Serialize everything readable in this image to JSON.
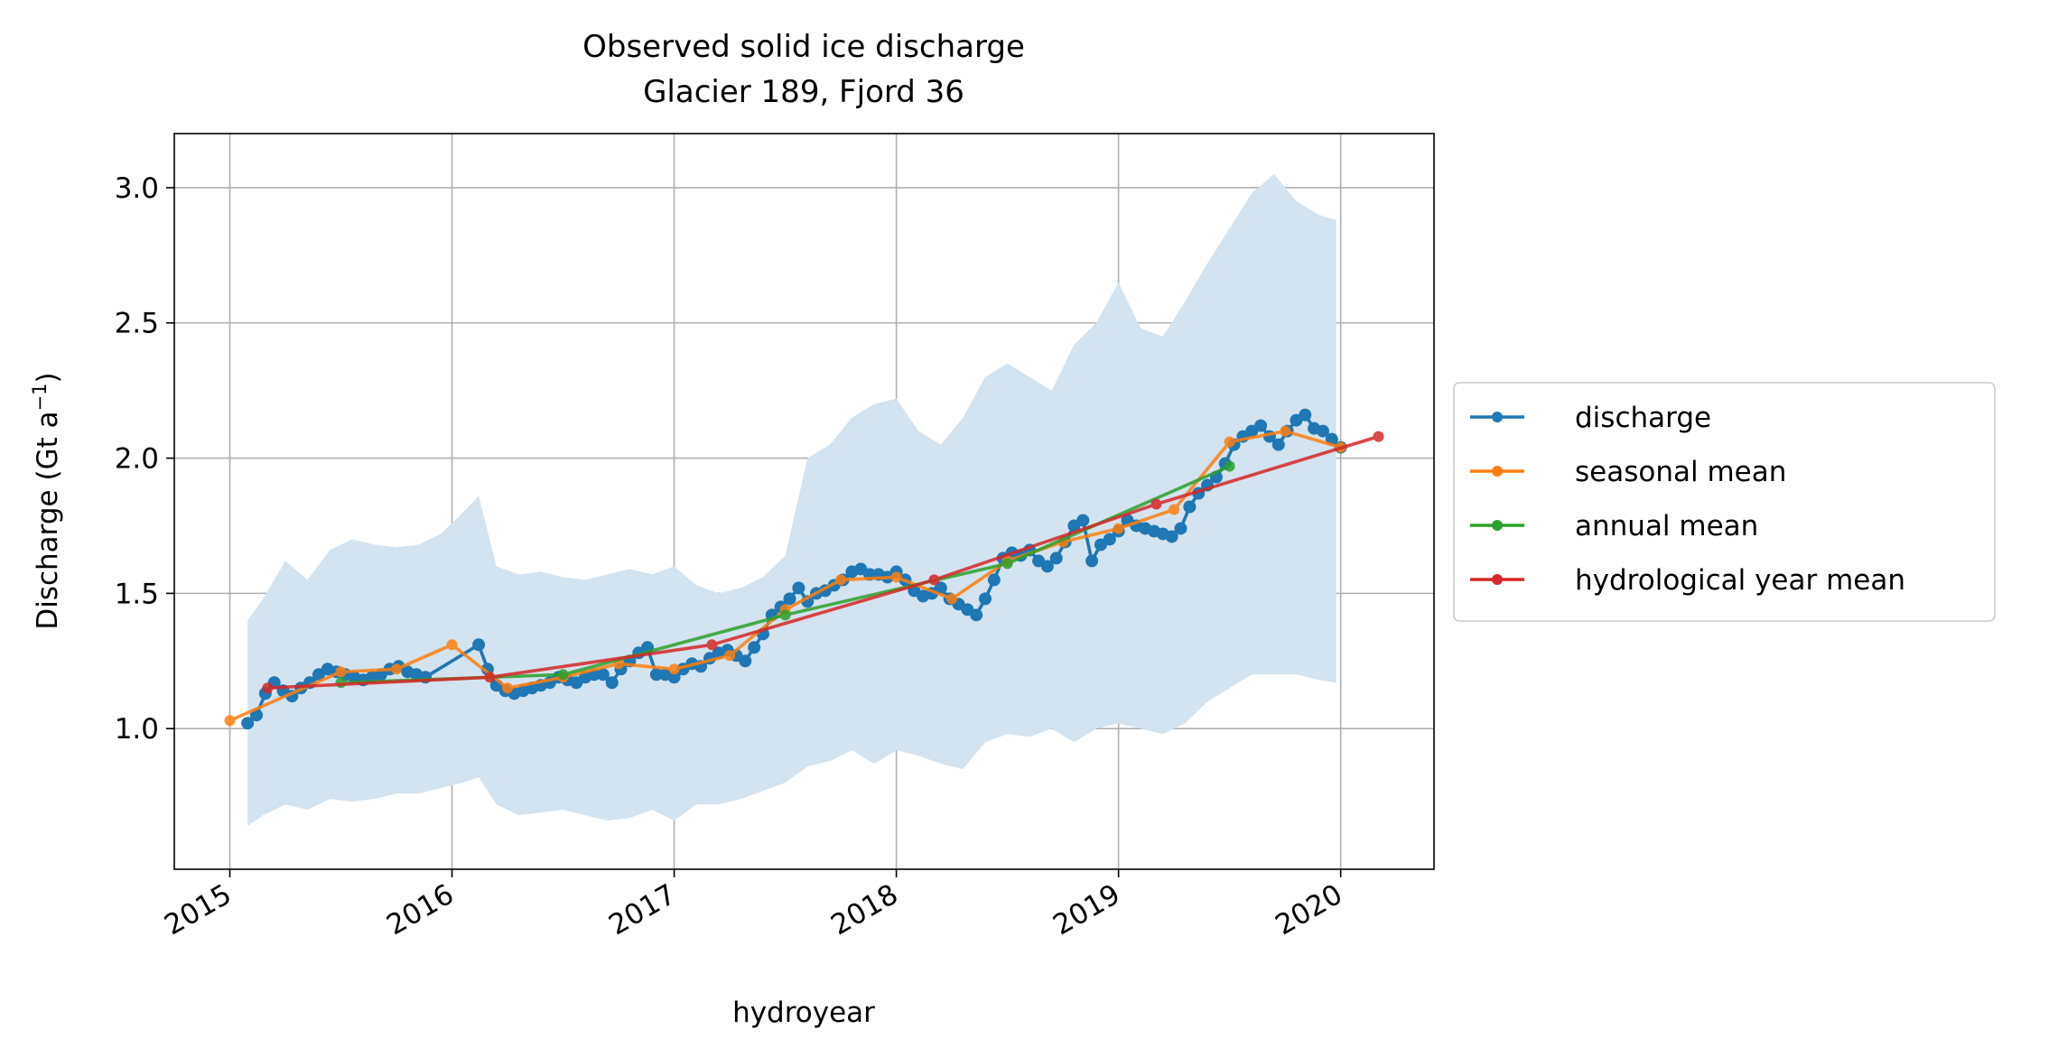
{
  "chart_data": {
    "type": "line",
    "title_line1": "Observed solid ice discharge",
    "title_line2": "Glacier 189, Fjord 36",
    "xlabel": "hydroyear",
    "ylabel": "Discharge (Gt a",
    "ylabel_sup": "−1",
    "ylabel_end": ")",
    "xlim": [
      2014.75,
      2020.42
    ],
    "ylim": [
      0.48,
      3.2
    ],
    "x_ticks": [
      {
        "value": 2015,
        "label": "2015"
      },
      {
        "value": 2016,
        "label": "2016"
      },
      {
        "value": 2017,
        "label": "2017"
      },
      {
        "value": 2018,
        "label": "2018"
      },
      {
        "value": 2019,
        "label": "2019"
      },
      {
        "value": 2020,
        "label": "2020"
      }
    ],
    "y_ticks": [
      {
        "value": 1.0,
        "label": "1.0"
      },
      {
        "value": 1.5,
        "label": "1.5"
      },
      {
        "value": 2.0,
        "label": "2.0"
      },
      {
        "value": 2.5,
        "label": "2.5"
      },
      {
        "value": 3.0,
        "label": "3.0"
      }
    ],
    "grid": true,
    "legend_position": "right-outside",
    "uncertainty_band": {
      "color": "#d3e3ef",
      "x": [
        2015.08,
        2015.15,
        2015.25,
        2015.35,
        2015.45,
        2015.55,
        2015.65,
        2015.75,
        2015.85,
        2015.95,
        2016.05,
        2016.12,
        2016.2,
        2016.3,
        2016.4,
        2016.5,
        2016.6,
        2016.7,
        2016.8,
        2016.9,
        2017.0,
        2017.1,
        2017.2,
        2017.3,
        2017.4,
        2017.5,
        2017.6,
        2017.7,
        2017.8,
        2017.9,
        2018.0,
        2018.1,
        2018.2,
        2018.3,
        2018.4,
        2018.5,
        2018.6,
        2018.7,
        2018.8,
        2018.9,
        2019.0,
        2019.1,
        2019.2,
        2019.3,
        2019.4,
        2019.5,
        2019.6,
        2019.7,
        2019.8,
        2019.9,
        2019.98
      ],
      "upper": [
        1.4,
        1.48,
        1.62,
        1.55,
        1.66,
        1.7,
        1.68,
        1.67,
        1.68,
        1.72,
        1.8,
        1.86,
        1.6,
        1.57,
        1.58,
        1.56,
        1.55,
        1.57,
        1.59,
        1.57,
        1.6,
        1.53,
        1.5,
        1.52,
        1.56,
        1.64,
        2.0,
        2.05,
        2.15,
        2.2,
        2.22,
        2.1,
        2.05,
        2.15,
        2.3,
        2.35,
        2.3,
        2.25,
        2.42,
        2.5,
        2.65,
        2.48,
        2.45,
        2.58,
        2.72,
        2.85,
        2.98,
        3.05,
        2.95,
        2.9,
        2.88
      ],
      "lower": [
        0.64,
        0.68,
        0.72,
        0.7,
        0.74,
        0.73,
        0.74,
        0.76,
        0.76,
        0.78,
        0.8,
        0.82,
        0.72,
        0.68,
        0.69,
        0.7,
        0.68,
        0.66,
        0.67,
        0.7,
        0.66,
        0.72,
        0.72,
        0.74,
        0.77,
        0.8,
        0.86,
        0.88,
        0.92,
        0.87,
        0.92,
        0.9,
        0.87,
        0.85,
        0.95,
        0.98,
        0.97,
        1.0,
        0.95,
        1.0,
        1.02,
        1.0,
        0.98,
        1.02,
        1.1,
        1.15,
        1.2,
        1.2,
        1.2,
        1.18,
        1.17
      ]
    },
    "series": [
      {
        "name": "discharge",
        "color": "#1f77b4",
        "marker_size": 7,
        "x": [
          2015.08,
          2015.12,
          2015.16,
          2015.2,
          2015.24,
          2015.28,
          2015.32,
          2015.36,
          2015.4,
          2015.44,
          2015.48,
          2015.52,
          2015.56,
          2015.6,
          2015.64,
          2015.68,
          2015.72,
          2015.76,
          2015.8,
          2015.84,
          2015.88,
          2016.12,
          2016.16,
          2016.2,
          2016.24,
          2016.28,
          2016.32,
          2016.36,
          2016.4,
          2016.44,
          2016.48,
          2016.52,
          2016.56,
          2016.6,
          2016.64,
          2016.68,
          2016.72,
          2016.76,
          2016.8,
          2016.84,
          2016.88,
          2016.92,
          2016.96,
          2017.0,
          2017.04,
          2017.08,
          2017.12,
          2017.16,
          2017.2,
          2017.24,
          2017.28,
          2017.32,
          2017.36,
          2017.4,
          2017.44,
          2017.48,
          2017.52,
          2017.56,
          2017.6,
          2017.64,
          2017.68,
          2017.72,
          2017.76,
          2017.8,
          2017.84,
          2017.88,
          2017.92,
          2017.96,
          2018.0,
          2018.04,
          2018.08,
          2018.12,
          2018.16,
          2018.2,
          2018.24,
          2018.28,
          2018.32,
          2018.36,
          2018.4,
          2018.44,
          2018.48,
          2018.52,
          2018.56,
          2018.6,
          2018.64,
          2018.68,
          2018.72,
          2018.76,
          2018.8,
          2018.84,
          2018.88,
          2018.92,
          2018.96,
          2019.0,
          2019.04,
          2019.08,
          2019.12,
          2019.16,
          2019.2,
          2019.24,
          2019.28,
          2019.32,
          2019.36,
          2019.4,
          2019.44,
          2019.48,
          2019.52,
          2019.56,
          2019.6,
          2019.64,
          2019.68,
          2019.72,
          2019.76,
          2019.8,
          2019.84,
          2019.88,
          2019.92,
          2019.96,
          2020.0
        ],
        "y": [
          1.02,
          1.05,
          1.13,
          1.17,
          1.14,
          1.12,
          1.15,
          1.17,
          1.2,
          1.22,
          1.21,
          1.2,
          1.19,
          1.18,
          1.19,
          1.2,
          1.22,
          1.23,
          1.21,
          1.2,
          1.19,
          1.31,
          1.22,
          1.16,
          1.14,
          1.13,
          1.14,
          1.15,
          1.16,
          1.17,
          1.19,
          1.18,
          1.17,
          1.19,
          1.2,
          1.2,
          1.17,
          1.22,
          1.25,
          1.28,
          1.3,
          1.2,
          1.2,
          1.19,
          1.22,
          1.24,
          1.23,
          1.26,
          1.28,
          1.29,
          1.27,
          1.25,
          1.3,
          1.35,
          1.42,
          1.45,
          1.48,
          1.52,
          1.47,
          1.5,
          1.51,
          1.53,
          1.55,
          1.58,
          1.59,
          1.57,
          1.57,
          1.56,
          1.58,
          1.55,
          1.51,
          1.49,
          1.5,
          1.52,
          1.48,
          1.46,
          1.44,
          1.42,
          1.48,
          1.55,
          1.63,
          1.65,
          1.64,
          1.66,
          1.62,
          1.6,
          1.63,
          1.69,
          1.75,
          1.77,
          1.62,
          1.68,
          1.7,
          1.73,
          1.77,
          1.75,
          1.74,
          1.73,
          1.72,
          1.71,
          1.74,
          1.82,
          1.87,
          1.9,
          1.93,
          1.98,
          2.05,
          2.08,
          2.1,
          2.12,
          2.08,
          2.05,
          2.1,
          2.14,
          2.16,
          2.11,
          2.1,
          2.07,
          2.04
        ]
      },
      {
        "name": "seasonal mean",
        "color": "#ff7f0e",
        "marker_size": 6,
        "x": [
          2015.0,
          2015.5,
          2015.75,
          2016.0,
          2016.25,
          2016.5,
          2016.75,
          2017.0,
          2017.25,
          2017.5,
          2017.75,
          2018.0,
          2018.25,
          2018.5,
          2018.75,
          2019.0,
          2019.25,
          2019.5,
          2019.75,
          2020.0
        ],
        "y": [
          1.03,
          1.21,
          1.22,
          1.31,
          1.15,
          1.19,
          1.24,
          1.22,
          1.27,
          1.44,
          1.55,
          1.56,
          1.48,
          1.62,
          1.69,
          1.74,
          1.81,
          2.06,
          2.1,
          2.04
        ]
      },
      {
        "name": "annual mean",
        "color": "#2ca02c",
        "marker_size": 6,
        "x": [
          2015.5,
          2016.5,
          2017.5,
          2018.5,
          2019.5
        ],
        "y": [
          1.17,
          1.2,
          1.42,
          1.61,
          1.97
        ]
      },
      {
        "name": "hydrological year mean",
        "color": "#d62728",
        "marker_size": 6,
        "x": [
          2015.17,
          2016.17,
          2017.17,
          2018.17,
          2019.17,
          2020.17
        ],
        "y": [
          1.15,
          1.19,
          1.31,
          1.55,
          1.83,
          2.08
        ]
      }
    ]
  }
}
